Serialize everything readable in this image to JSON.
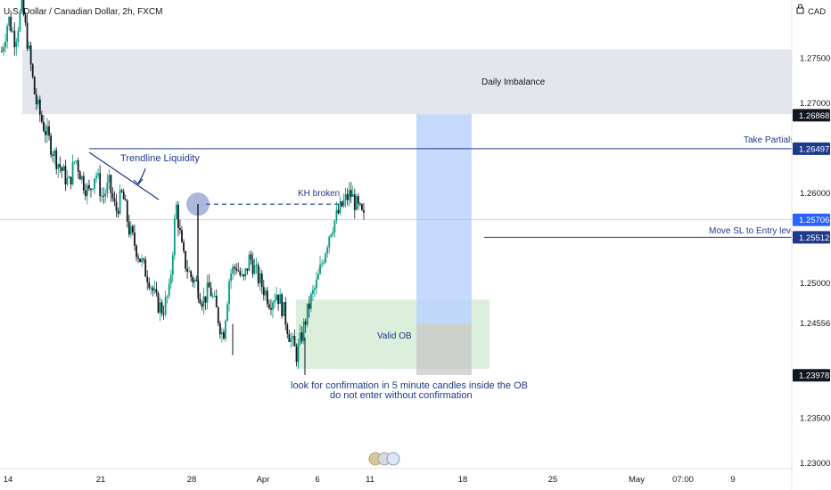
{
  "chart_data": {
    "type": "candlestick",
    "title": "U.S. Dollar / Canadian Dollar, 2h, FXCM",
    "currency": "CAD",
    "y_ticks": [
      "1.27500",
      "1.27000",
      "1.26000",
      "1.25000",
      "1.24556",
      "1.23500",
      "1.23000"
    ],
    "ylim": [
      1.2294,
      1.2815
    ],
    "x_ticks": [
      "14",
      "21",
      "28",
      "Apr",
      "6",
      "11",
      "18",
      "25",
      "May",
      "07:00",
      "9"
    ],
    "price_tags": [
      {
        "value": "1.26868",
        "color": "#131722"
      },
      {
        "value": "1.26497",
        "color": "#1e3a8a"
      },
      {
        "value": "1.25706",
        "color": "#2962ff"
      },
      {
        "value": "1.25512",
        "color": "#1e3a8a"
      },
      {
        "value": "1.23978",
        "color": "#131722"
      }
    ],
    "annotations": {
      "daily_imbalance": "Daily Imbalance",
      "take_partials": "Take Partials",
      "trendline_liquidity": "Trendline Liquidity",
      "kh_broken": "KH broken",
      "move_sl": "Move SL to Entry level",
      "valid_ob": "Valid OB",
      "note_line1": "look for confirmation in 5 minute candles inside the OB",
      "note_line2": "do not enter without confirmation"
    },
    "zones": {
      "daily_imbalance": {
        "top": 1.276,
        "bottom": 1.2688
      },
      "order_block": {
        "top": 1.2482,
        "bottom": 1.2405
      },
      "target": {
        "top": 1.2688,
        "bottom": 1.2455
      },
      "risk": {
        "top": 1.2455,
        "bottom": 1.2398
      }
    },
    "levels": {
      "take_partials": 1.26497,
      "current": 1.25706,
      "move_sl": 1.25512,
      "kh_level": 1.2588
    },
    "colors": {
      "up": "#089981",
      "down": "#131722",
      "imbalance": "#e0e3eb",
      "ob": "#d6ecd6",
      "target": "#bbd3fb",
      "risk": "#c4c4c4",
      "accent": "#1e3a8a"
    },
    "series_path": [
      1.2758,
      1.2795,
      1.277,
      1.281,
      1.276,
      1.2705,
      1.268,
      1.266,
      1.264,
      1.2625,
      1.261,
      1.264,
      1.2615,
      1.26,
      1.2625,
      1.2595,
      1.261,
      1.258,
      1.26,
      1.256,
      1.254,
      1.252,
      1.2505,
      1.248,
      1.247,
      1.249,
      1.2588,
      1.253,
      1.251,
      1.25,
      1.248,
      1.2495,
      1.247,
      1.244,
      1.251,
      1.252,
      1.25,
      1.253,
      1.251,
      1.2495,
      1.248,
      1.249,
      1.247,
      1.244,
      1.242,
      1.245,
      1.248,
      1.25,
      1.253,
      1.256,
      1.2575,
      1.259,
      1.26,
      1.2585,
      1.2571
    ]
  }
}
